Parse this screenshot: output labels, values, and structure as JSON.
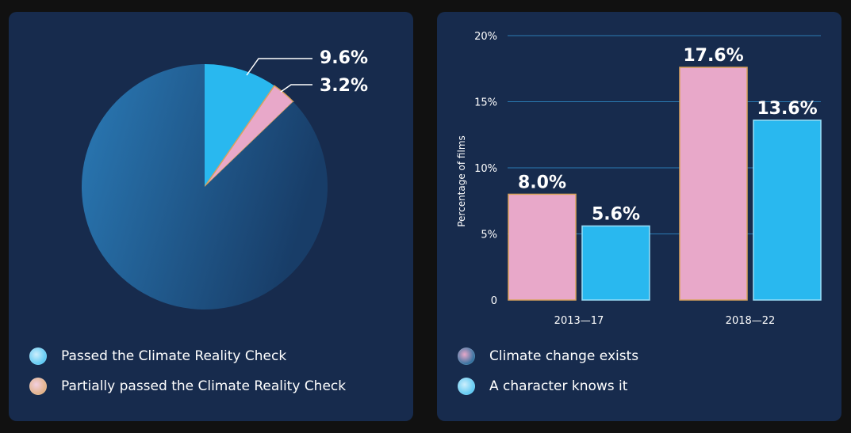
{
  "colors": {
    "background": "#111111",
    "panel": "#172b4d",
    "blue": "#29b8ef",
    "pink": "#e8a8c9",
    "gold": "#d9a25c",
    "grid": "#2b7bb4",
    "pie_main_light": "#2a7ab6",
    "pie_main_dark": "#183d68"
  },
  "icons": {
    "passed": "film-still-blue-icon",
    "partial": "film-still-orange-icon",
    "exists": "film-still-mixed-icon",
    "knows": "film-still-blue-icon"
  },
  "pie_chart": {
    "type": "pie",
    "slices": [
      {
        "name": "Passed the Climate Reality Check",
        "value": 9.6,
        "label": "9.6%"
      },
      {
        "name": "Partially passed the Climate Reality Check",
        "value": 3.2,
        "label": "3.2%"
      },
      {
        "name": "",
        "value": 87.2,
        "label": ""
      }
    ],
    "legend": [
      "Passed the Climate Reality Check",
      "Partially passed the Climate Reality Check"
    ]
  },
  "chart_data": {
    "type": "bar",
    "categories": [
      "2013—17",
      "2018—22"
    ],
    "series": [
      {
        "name": "Climate change exists",
        "values": [
          8.0,
          17.6
        ],
        "labels": [
          "8.0%",
          "17.6%"
        ]
      },
      {
        "name": "A character knows it",
        "values": [
          5.6,
          13.6
        ],
        "labels": [
          "5.6%",
          "13.6%"
        ]
      }
    ],
    "ylabel": "Percentage of films",
    "ylim": [
      0,
      20
    ],
    "yticks": [
      0,
      5,
      10,
      15,
      20
    ],
    "ytick_labels": [
      "0",
      "5%",
      "10%",
      "15%",
      "20%"
    ],
    "grid": true,
    "legend_position": "bottom"
  }
}
